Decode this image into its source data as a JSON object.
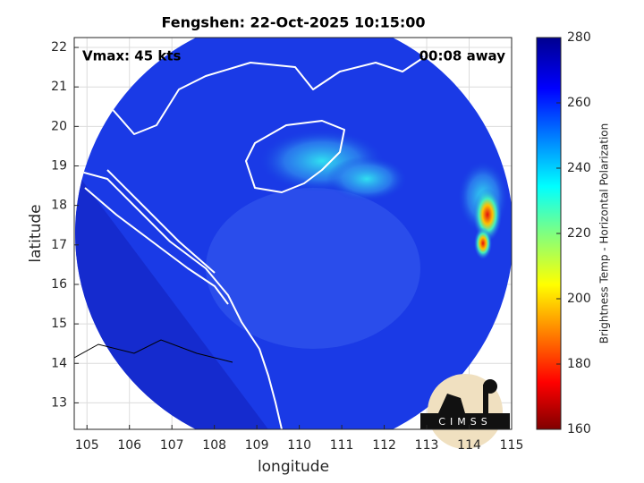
{
  "chart_data": {
    "type": "map",
    "title": "Fengshen: 22-Oct-2025 10:15:00",
    "annotations": [
      "Vmax: 45 kts",
      "00:08 away"
    ],
    "xlabel": "longitude",
    "ylabel": "latitude",
    "xlim": [
      104.7,
      115
    ],
    "ylim": [
      12.33,
      22.25
    ],
    "xticks": [
      105,
      106,
      107,
      108,
      109,
      110,
      111,
      112,
      113,
      114,
      115
    ],
    "yticks": [
      13,
      14,
      15,
      16,
      17,
      18,
      19,
      20,
      21,
      22
    ],
    "grid": true,
    "colorbar": {
      "label": "Brightness Temp - Horizontal Polarization",
      "lim": [
        160,
        280
      ],
      "ticks": [
        160,
        180,
        200,
        220,
        240,
        260,
        280
      ]
    },
    "logo": "CIMSS"
  }
}
